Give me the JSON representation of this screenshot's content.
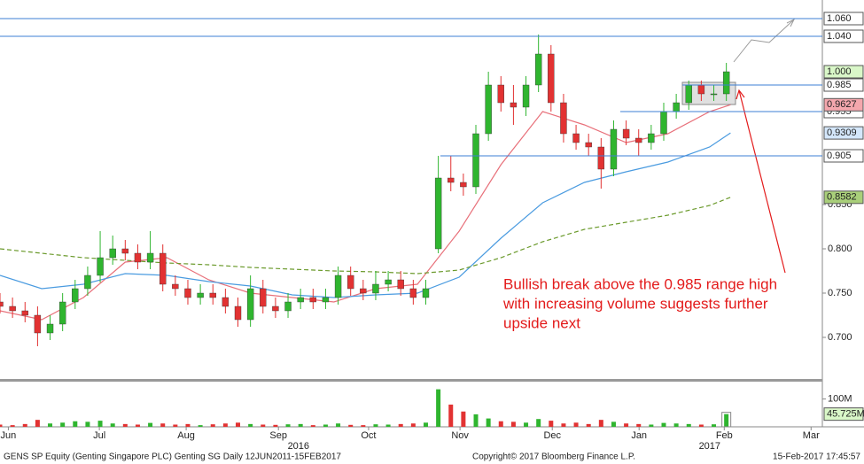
{
  "chart_data": {
    "type": "candlestick",
    "up_color": "#2fb52f",
    "down_color": "#e23232",
    "xlim": [
      0,
      197
    ],
    "xticks": [
      {
        "value": 2,
        "label": "Jun"
      },
      {
        "value": 23.8,
        "label": "Jul"
      },
      {
        "value": 44.6,
        "label": "Aug"
      },
      {
        "value": 66.7,
        "label": "Sep"
      },
      {
        "value": 88.3,
        "label": "Oct"
      },
      {
        "value": 110.2,
        "label": "Nov"
      },
      {
        "value": 132.3,
        "label": "Dec"
      },
      {
        "value": 153.1,
        "label": "Jan"
      },
      {
        "value": 173.5,
        "label": "Feb"
      },
      {
        "value": 194.3,
        "label": "Mar"
      }
    ],
    "year_ticks": [
      {
        "value": 71.5,
        "label": "2016"
      },
      {
        "value": 170,
        "label": "2017"
      }
    ],
    "ylim": [
      0.653,
      1.081
    ],
    "yticks": [
      {
        "value": 0.7,
        "label": "0.700"
      },
      {
        "value": 0.75,
        "label": "0.750"
      },
      {
        "value": 0.8,
        "label": "0.800"
      },
      {
        "value": 0.85,
        "label": "0.850"
      }
    ],
    "x": [
      0,
      3,
      6,
      9,
      12,
      15,
      18,
      21,
      24,
      27,
      30,
      33,
      36,
      39,
      42,
      45,
      48,
      51,
      54,
      57,
      60,
      63,
      66,
      69,
      72,
      75,
      78,
      81,
      84,
      87,
      90,
      93,
      96,
      99,
      102,
      105,
      108,
      111,
      114,
      117,
      120,
      123,
      126,
      129,
      132,
      135,
      138,
      141,
      144,
      147,
      150,
      153,
      156,
      159,
      162,
      165,
      168,
      171,
      174
    ],
    "open": [
      0.74,
      0.735,
      0.73,
      0.725,
      0.705,
      0.715,
      0.74,
      0.755,
      0.77,
      0.79,
      0.8,
      0.795,
      0.785,
      0.795,
      0.76,
      0.755,
      0.745,
      0.75,
      0.745,
      0.735,
      0.72,
      0.755,
      0.735,
      0.73,
      0.74,
      0.745,
      0.74,
      0.745,
      0.77,
      0.755,
      0.75,
      0.76,
      0.765,
      0.755,
      0.745,
      0.8,
      0.88,
      0.875,
      0.87,
      0.93,
      0.985,
      0.965,
      0.96,
      0.985,
      1.02,
      0.965,
      0.93,
      0.92,
      0.915,
      0.89,
      0.935,
      0.925,
      0.92,
      0.93,
      0.955,
      0.965,
      0.985,
      0.975,
      0.975
    ],
    "high": [
      0.75,
      0.745,
      0.74,
      0.735,
      0.725,
      0.75,
      0.765,
      0.78,
      0.82,
      0.815,
      0.81,
      0.805,
      0.82,
      0.805,
      0.77,
      0.765,
      0.76,
      0.76,
      0.755,
      0.745,
      0.77,
      0.765,
      0.745,
      0.75,
      0.755,
      0.755,
      0.755,
      0.78,
      0.78,
      0.765,
      0.775,
      0.775,
      0.775,
      0.765,
      0.765,
      0.905,
      0.905,
      0.885,
      0.94,
      1.0,
      0.995,
      0.985,
      0.995,
      1.042,
      1.03,
      0.975,
      0.94,
      0.93,
      0.925,
      0.945,
      0.945,
      0.935,
      0.94,
      0.965,
      0.975,
      0.99,
      0.99,
      0.985,
      1.01
    ],
    "low": [
      0.727,
      0.722,
      0.717,
      0.69,
      0.697,
      0.707,
      0.732,
      0.747,
      0.762,
      0.782,
      0.787,
      0.777,
      0.777,
      0.752,
      0.747,
      0.737,
      0.737,
      0.737,
      0.727,
      0.712,
      0.712,
      0.727,
      0.722,
      0.722,
      0.732,
      0.732,
      0.732,
      0.737,
      0.747,
      0.742,
      0.742,
      0.752,
      0.747,
      0.737,
      0.737,
      0.795,
      0.865,
      0.86,
      0.862,
      0.922,
      0.955,
      0.94,
      0.95,
      0.977,
      0.955,
      0.92,
      0.912,
      0.905,
      0.868,
      0.882,
      0.917,
      0.905,
      0.912,
      0.922,
      0.947,
      0.957,
      0.967,
      0.967,
      0.967
    ],
    "close": [
      0.735,
      0.73,
      0.725,
      0.705,
      0.715,
      0.74,
      0.755,
      0.77,
      0.79,
      0.8,
      0.795,
      0.785,
      0.795,
      0.76,
      0.755,
      0.745,
      0.75,
      0.745,
      0.735,
      0.72,
      0.755,
      0.735,
      0.73,
      0.74,
      0.745,
      0.74,
      0.745,
      0.77,
      0.755,
      0.75,
      0.76,
      0.765,
      0.755,
      0.745,
      0.755,
      0.88,
      0.875,
      0.87,
      0.93,
      0.985,
      0.965,
      0.96,
      0.985,
      1.02,
      0.965,
      0.93,
      0.92,
      0.915,
      0.89,
      0.935,
      0.925,
      0.92,
      0.93,
      0.955,
      0.965,
      0.985,
      0.975,
      0.975,
      1.0
    ],
    "overlays": [
      {
        "color": "#e8707a",
        "dash": false,
        "x": [
          0,
          10,
          20,
          30,
          40,
          50,
          60,
          70,
          80,
          90,
          100,
          110,
          120,
          130,
          140,
          150,
          160,
          170,
          175
        ],
        "values": [
          0.73,
          0.72,
          0.745,
          0.785,
          0.79,
          0.765,
          0.75,
          0.745,
          0.74,
          0.755,
          0.76,
          0.82,
          0.895,
          0.955,
          0.94,
          0.92,
          0.93,
          0.955,
          0.9627
        ]
      },
      {
        "color": "#4a9be0",
        "dash": false,
        "x": [
          0,
          10,
          20,
          30,
          40,
          50,
          60,
          70,
          80,
          90,
          100,
          110,
          120,
          130,
          140,
          150,
          160,
          170,
          175
        ],
        "values": [
          0.77,
          0.755,
          0.76,
          0.772,
          0.77,
          0.763,
          0.758,
          0.748,
          0.745,
          0.748,
          0.75,
          0.768,
          0.812,
          0.852,
          0.875,
          0.887,
          0.898,
          0.915,
          0.9309
        ]
      },
      {
        "color": "#6b9a2c",
        "dash": true,
        "x": [
          0,
          10,
          20,
          30,
          40,
          50,
          60,
          70,
          80,
          90,
          100,
          110,
          120,
          130,
          140,
          150,
          160,
          170,
          175
        ],
        "values": [
          0.8,
          0.795,
          0.79,
          0.787,
          0.784,
          0.782,
          0.779,
          0.777,
          0.775,
          0.774,
          0.772,
          0.776,
          0.79,
          0.808,
          0.822,
          0.83,
          0.838,
          0.849,
          0.8582
        ]
      }
    ],
    "level_color": "#3c7fd6",
    "levels": [
      {
        "value": 1.06,
        "label": "1.060",
        "from": 0
      },
      {
        "value": 1.04,
        "label": "1.040",
        "from": 0
      },
      {
        "value": 0.985,
        "label": "0.985",
        "from": 163.5
      },
      {
        "value": 0.955,
        "label": "0.955",
        "from": 148.6
      },
      {
        "value": 0.905,
        "label": "0.905",
        "from": 105.5
      }
    ],
    "price_labels": [
      {
        "value": 1.0,
        "label": "1.000",
        "color": "#d9f7c8"
      },
      {
        "value": 0.9627,
        "label": "0.9627",
        "color": "#f4a7ad"
      },
      {
        "value": 0.9309,
        "label": "0.9309",
        "color": "#d4e7fb"
      },
      {
        "value": 0.8582,
        "label": "0.8582",
        "color": "#a9cf7a"
      }
    ],
    "volume": {
      "ylim": [
        0,
        162.5
      ],
      "yticks": [
        {
          "value": 100,
          "label": "100M"
        }
      ],
      "values": [
        8,
        6,
        10,
        25,
        12,
        15,
        20,
        18,
        22,
        12,
        10,
        8,
        14,
        12,
        8,
        10,
        6,
        9,
        12,
        15,
        10,
        8,
        7,
        9,
        10,
        6,
        8,
        12,
        7,
        6,
        9,
        8,
        10,
        12,
        15,
        135,
        80,
        55,
        45,
        30,
        20,
        18,
        15,
        28,
        22,
        12,
        15,
        10,
        25,
        18,
        12,
        10,
        8,
        14,
        12,
        10,
        8,
        9,
        45.725
      ],
      "value_labels": [
        null,
        null,
        null,
        null,
        null,
        null,
        null,
        null,
        null,
        null,
        null,
        null,
        null,
        null,
        null,
        null,
        null,
        null,
        null,
        null,
        null,
        null,
        null,
        null,
        null,
        null,
        null,
        null,
        null,
        null,
        null,
        null,
        null,
        null,
        null,
        null,
        null,
        null,
        null,
        null,
        null,
        null,
        null,
        null,
        null,
        null,
        null,
        null,
        null,
        null,
        null,
        null,
        null,
        null,
        null,
        null,
        null,
        null,
        "45.725M"
      ]
    },
    "annotation": {
      "color": "#e31b1b",
      "lines": [
        "Bullish break above the 0.985 range high",
        "with increasing volume suggests further",
        "upside next"
      ]
    },
    "footer": {
      "left": "GENS SP Equity (Genting Singapore PLC) Genting SG  Daily 12JUN2011-15FEB2017",
      "center": "Copyright© 2017 Bloomberg Finance L.P.",
      "right": "15-Feb-2017 17:45:57"
    }
  }
}
